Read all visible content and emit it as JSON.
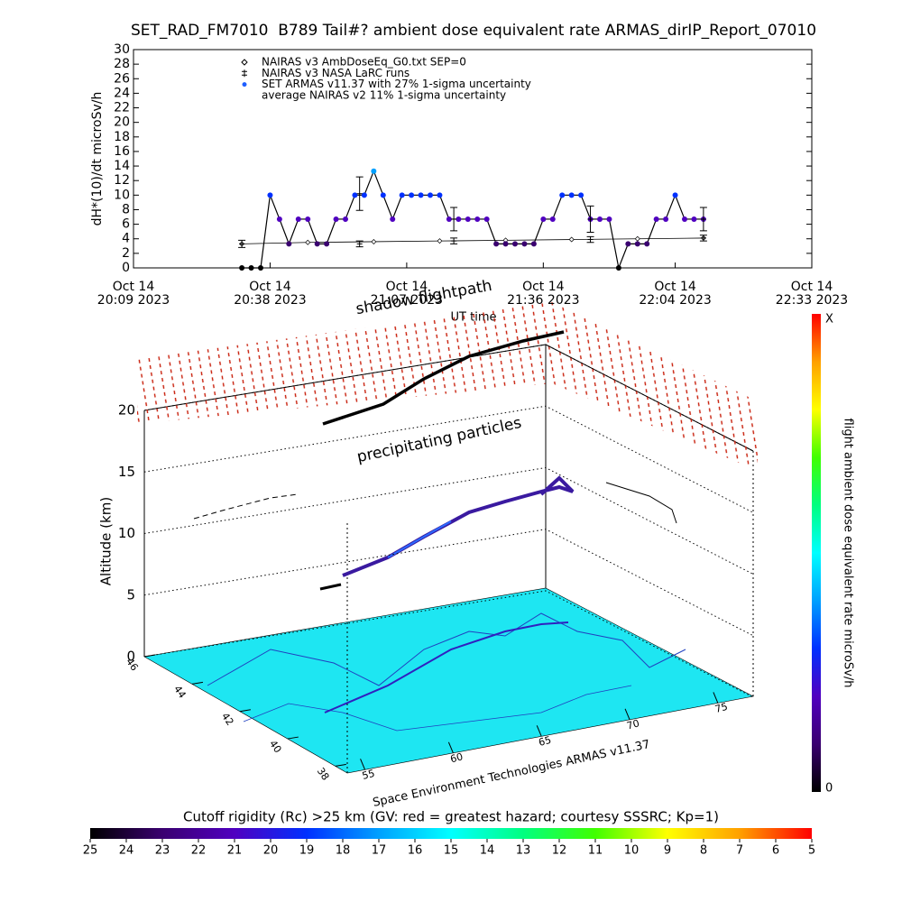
{
  "chart_data": [
    {
      "type": "line",
      "title": "SET_RAD_FM7010  B789 Tail#? ambient dose equivalent rate ARMAS_dirIP_Report_07010",
      "ylabel": "dH*(10)/dt microSv/h",
      "xlabel": "UT time",
      "xlim": [
        "20:09",
        "22:33"
      ],
      "xticks": [
        {
          "value": "20:09",
          "label": [
            "Oct 14",
            "20:09 2023"
          ]
        },
        {
          "value": "20:38",
          "label": [
            "Oct 14",
            "20:38 2023"
          ]
        },
        {
          "value": "21:07",
          "label": [
            "Oct 14",
            "21:07 2023"
          ]
        },
        {
          "value": "21:36",
          "label": [
            "Oct 14",
            "21:36 2023"
          ]
        },
        {
          "value": "22:04",
          "label": [
            "Oct 14",
            "22:04 2023"
          ]
        },
        {
          "value": "22:33",
          "label": [
            "Oct 14",
            "22:33 2023"
          ]
        }
      ],
      "ylim": [
        0,
        30
      ],
      "yticks": [
        0,
        2,
        4,
        6,
        8,
        10,
        12,
        14,
        16,
        18,
        20,
        22,
        24,
        26,
        28,
        30
      ],
      "series": [
        {
          "name": "NAIRAS v3 AmbDoseEq_G0.txt SEP=0",
          "marker": "diamond",
          "color": "#000000",
          "x": [
            "20:32",
            "20:46",
            "21:00",
            "21:14",
            "21:28",
            "21:42",
            "21:56",
            "22:10"
          ],
          "values": [
            3.3,
            3.5,
            3.6,
            3.7,
            3.8,
            3.9,
            4.0,
            4.1
          ]
        },
        {
          "name": "NAIRAS v3 NASA LaRC runs",
          "marker": "plus",
          "color": "#000000"
        },
        {
          "name": "SET ARMAS v11.37 with 27% 1-sigma uncertainty",
          "marker": "dot",
          "color": "#1f5fff",
          "x": [
            "20:32",
            "20:34",
            "20:36",
            "20:38",
            "20:40",
            "20:42",
            "20:44",
            "20:46",
            "20:48",
            "20:50",
            "20:52",
            "20:54",
            "20:56",
            "20:58",
            "21:00",
            "21:02",
            "21:04",
            "21:06",
            "21:08",
            "21:10",
            "21:12",
            "21:14",
            "21:16",
            "21:18",
            "21:20",
            "21:22",
            "21:24",
            "21:26",
            "21:28",
            "21:30",
            "21:32",
            "21:34",
            "21:36",
            "21:38",
            "21:40",
            "21:42",
            "21:44",
            "21:46",
            "21:48",
            "21:50",
            "21:52",
            "21:54",
            "21:56",
            "21:58",
            "22:00",
            "22:02",
            "22:04",
            "22:06",
            "22:08",
            "22:10"
          ],
          "values": [
            0,
            0,
            0,
            10,
            6.7,
            3.3,
            6.7,
            6.7,
            3.3,
            3.3,
            6.7,
            6.7,
            10,
            10,
            13.3,
            10,
            6.7,
            10,
            10,
            10,
            10,
            10,
            6.7,
            6.7,
            6.7,
            6.7,
            6.7,
            3.3,
            3.3,
            3.3,
            3.3,
            3.3,
            6.7,
            6.7,
            10,
            10,
            10,
            6.7,
            6.7,
            6.7,
            0,
            3.3,
            3.3,
            3.3,
            6.7,
            6.7,
            10,
            6.7,
            6.7,
            6.7
          ]
        },
        {
          "name": "average NAIRAS v2 11% 1-sigma uncertainty",
          "marker": "errorbar",
          "color": "#000000",
          "x": [
            "20:32",
            "20:57",
            "20:57",
            "21:17",
            "21:17",
            "21:46",
            "21:46",
            "22:10",
            "22:10"
          ],
          "values": [
            3.3,
            10.2,
            3.3,
            6.7,
            3.7,
            6.7,
            3.9,
            6.7,
            4.1
          ],
          "errors": [
            0.5,
            2.3,
            0.4,
            1.6,
            0.4,
            1.8,
            0.4,
            1.6,
            0.4
          ]
        }
      ]
    },
    {
      "type": "altitude3d",
      "annotations": [
        "shadow flightpath",
        "precipitating particles"
      ],
      "zlabel": "Altitude (km)",
      "zlim": [
        0,
        20
      ],
      "zticks": [
        0,
        5,
        10,
        15,
        20
      ],
      "xlim": [
        54,
        77
      ],
      "xticks": [
        55,
        60,
        65,
        70,
        75
      ],
      "ylim": [
        46,
        37.5
      ],
      "yticks": [
        46,
        44,
        42,
        40,
        38
      ],
      "credit": "Space Environment Technologies ARMAS v11.37"
    },
    {
      "type": "colorbar",
      "orientation": "horizontal",
      "label": "Cutoff rigidity (Rc) >25 km (GV: red = greatest hazard; courtesy SSSRC; Kp=1)",
      "lim": [
        25,
        5
      ],
      "ticks": [
        25,
        24,
        23,
        22,
        21,
        20,
        19,
        18,
        17,
        16,
        15,
        14,
        13,
        12,
        11,
        10,
        9,
        8,
        7,
        6,
        5
      ],
      "colors": [
        "#000000",
        "#3a0070",
        "#5000c0",
        "#0030ff",
        "#00a0ff",
        "#00ffff",
        "#00ff80",
        "#40ff00",
        "#ffff00",
        "#ffa000",
        "#ff0000"
      ]
    },
    {
      "type": "colorbar",
      "orientation": "vertical",
      "label": "flight ambient dose equivalent rate microSv/h",
      "tick_labels": [
        "0",
        "X"
      ],
      "colors": [
        "#000000",
        "#3a0070",
        "#5000c0",
        "#0030ff",
        "#00a0ff",
        "#00ffff",
        "#00ff80",
        "#40ff00",
        "#ffff00",
        "#ffa000",
        "#ff0000"
      ]
    }
  ]
}
